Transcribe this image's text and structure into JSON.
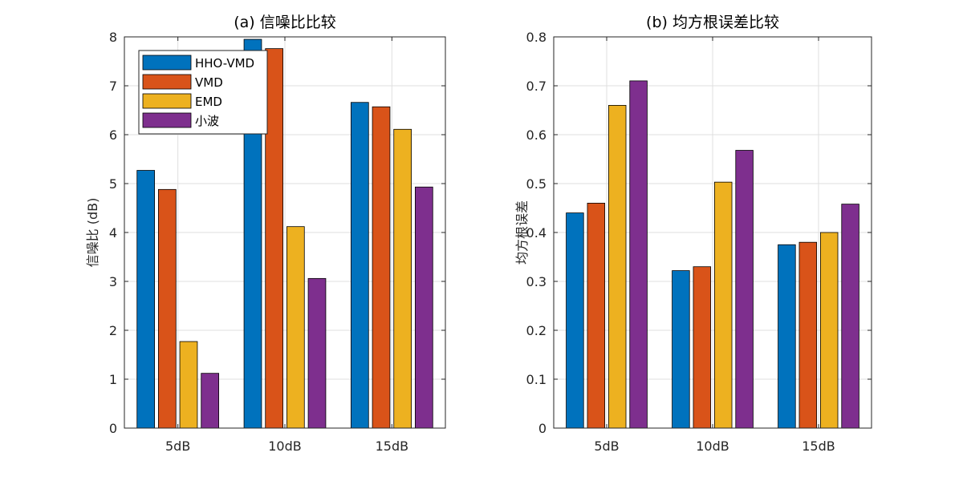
{
  "colors": {
    "HHO-VMD": "#0072BD",
    "VMD": "#D95319",
    "EMD": "#EDB120",
    "小波": "#7E2F8E"
  },
  "legend": {
    "entries": [
      "HHO-VMD",
      "VMD",
      "EMD",
      "小波"
    ]
  },
  "chart_data": [
    {
      "type": "bar",
      "title": "(a) 信噪比比较",
      "xlabel": "",
      "ylabel": "信噪比 (dB)",
      "categories": [
        "5dB",
        "10dB",
        "15dB"
      ],
      "ylim": [
        0,
        8
      ],
      "yticks": [
        0,
        1,
        2,
        3,
        4,
        5,
        6,
        7,
        8
      ],
      "ytick_labels": [
        "0",
        "1",
        "2",
        "3",
        "4",
        "5",
        "6",
        "7",
        "8"
      ],
      "grid": true,
      "legend_position": "top-left",
      "series": [
        {
          "name": "HHO-VMD",
          "values": [
            5.27,
            7.95,
            6.66
          ]
        },
        {
          "name": "VMD",
          "values": [
            4.88,
            7.76,
            6.57
          ]
        },
        {
          "name": "EMD",
          "values": [
            1.77,
            4.12,
            6.11
          ]
        },
        {
          "name": "小波",
          "values": [
            1.12,
            3.06,
            4.93
          ]
        }
      ]
    },
    {
      "type": "bar",
      "title": "(b) 均方根误差比较",
      "xlabel": "",
      "ylabel": "均方根误差",
      "categories": [
        "5dB",
        "10dB",
        "15dB"
      ],
      "ylim": [
        0,
        0.8
      ],
      "yticks": [
        0,
        0.1,
        0.2,
        0.3,
        0.4,
        0.5,
        0.6,
        0.7,
        0.8
      ],
      "ytick_labels": [
        "0",
        "0.1",
        "0.2",
        "0.3",
        "0.4",
        "0.5",
        "0.6",
        "0.7",
        "0.8"
      ],
      "grid": true,
      "series": [
        {
          "name": "HHO-VMD",
          "values": [
            0.44,
            0.322,
            0.375
          ]
        },
        {
          "name": "VMD",
          "values": [
            0.46,
            0.33,
            0.38
          ]
        },
        {
          "name": "EMD",
          "values": [
            0.66,
            0.503,
            0.4
          ]
        },
        {
          "name": "小波",
          "values": [
            0.71,
            0.568,
            0.458
          ]
        }
      ]
    }
  ]
}
